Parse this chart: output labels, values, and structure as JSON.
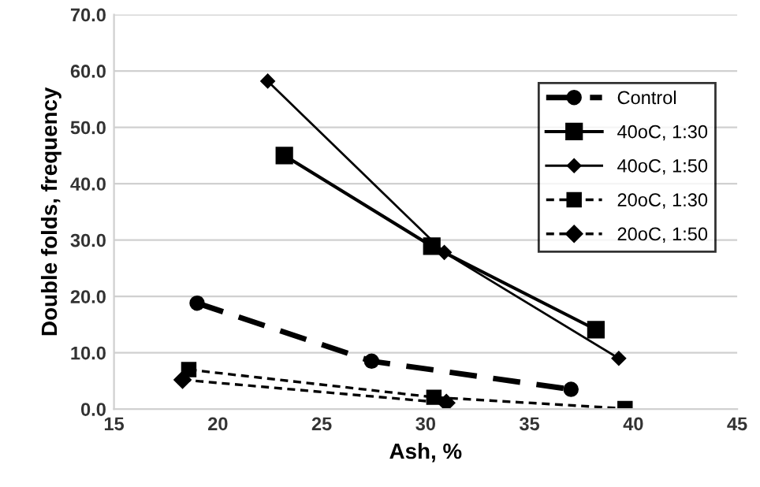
{
  "chart_data": {
    "type": "line",
    "xlabel": "Ash, %",
    "ylabel": "Double folds, frequency",
    "xlim": [
      15,
      45
    ],
    "xticks": [
      15,
      20,
      25,
      30,
      35,
      40,
      45
    ],
    "ylim": [
      0,
      70
    ],
    "yticks": [
      {
        "value": 0,
        "label": "0.0"
      },
      {
        "value": 10,
        "label": "10.0"
      },
      {
        "value": 20,
        "label": "20.0"
      },
      {
        "value": 30,
        "label": "30.0"
      },
      {
        "value": 40,
        "label": "40.0"
      },
      {
        "value": 50,
        "label": "50.0"
      },
      {
        "value": 60,
        "label": "60.0"
      },
      {
        "value": 70,
        "label": "70.0"
      }
    ],
    "grid": "y",
    "legend": "top right",
    "series": [
      {
        "name": "Control",
        "color": "#000000",
        "x": [
          19.0,
          27.4,
          37.0
        ],
        "values": [
          18.8,
          8.5,
          3.5
        ],
        "marker": "circle",
        "line_style": "dashed"
      },
      {
        "name": "40oC, 1:30",
        "color": "#000000",
        "x": [
          23.2,
          30.3,
          38.2
        ],
        "values": [
          45.0,
          28.9,
          14.1
        ],
        "marker": "square",
        "line_style": "solid"
      },
      {
        "name": "40oC, 1:50",
        "color": "#000000",
        "x": [
          22.4,
          30.9,
          39.3
        ],
        "values": [
          58.2,
          27.8,
          9.0
        ],
        "marker": "diamond",
        "line_style": "solid"
      },
      {
        "name": "20oC, 1:30",
        "color": "#000000",
        "x": [
          18.6,
          30.4,
          39.6
        ],
        "values": [
          7.0,
          2.1,
          0.1
        ],
        "marker": "square",
        "line_style": "dashed"
      },
      {
        "name": "20oC, 1:50",
        "color": "#000000",
        "x": [
          18.3,
          31.0
        ],
        "values": [
          5.2,
          1.1
        ],
        "marker": "diamond",
        "line_style": "dashed"
      }
    ]
  }
}
